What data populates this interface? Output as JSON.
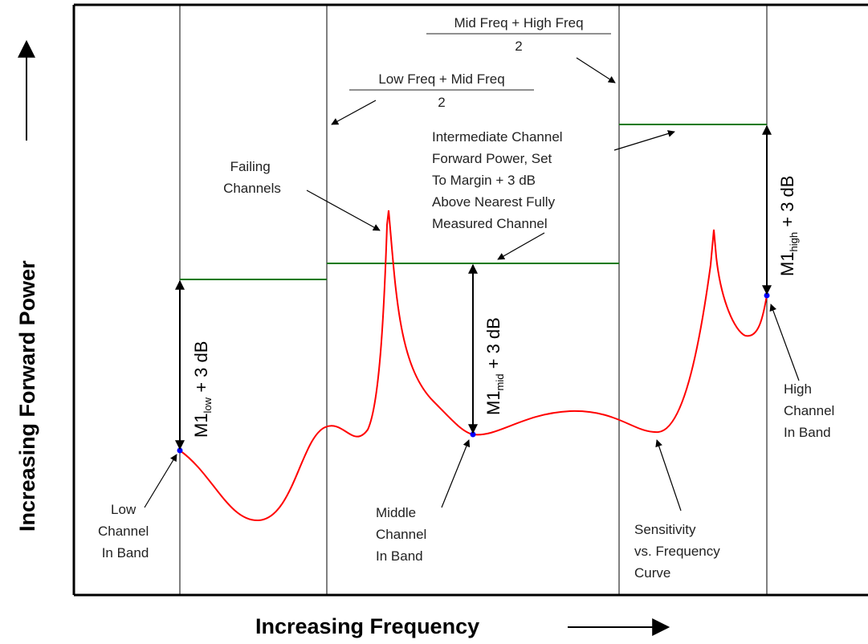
{
  "axes": {
    "x_title": "Increasing Frequency",
    "y_title": "Increasing Forward Power"
  },
  "boundaries": {
    "low_mid": {
      "numerator": "Low Freq + Mid Freq",
      "denominator": "2"
    },
    "mid_high": {
      "numerator": "Mid Freq + High Freq",
      "denominator": "2"
    }
  },
  "annotations": {
    "failing": [
      "Failing",
      "Channels"
    ],
    "intermediate": [
      "Intermediate Channel",
      "Forward Power, Set",
      "To Margin + 3 dB",
      "Above Nearest Fully",
      "Measured Channel"
    ],
    "low_channel": [
      "Low",
      "Channel",
      "In Band"
    ],
    "middle_channel": [
      "Middle",
      "Channel",
      "In Band"
    ],
    "high_channel": [
      "High",
      "Channel",
      "In Band"
    ],
    "sensitivity": [
      "Sensitivity",
      "vs. Frequency",
      "Curve"
    ]
  },
  "margins": {
    "low": {
      "base": "M1",
      "sub": "low",
      "suffix": " + 3 dB"
    },
    "mid": {
      "base": "M1",
      "sub": "mid",
      "suffix": " + 3 dB"
    },
    "high": {
      "base": "M1",
      "sub": "high",
      "suffix": " + 3 dB"
    }
  },
  "colors": {
    "curve": "#ff0000",
    "power_level": "#0a7a0a",
    "measured_point": "#0000ff",
    "frame": "#000000"
  }
}
